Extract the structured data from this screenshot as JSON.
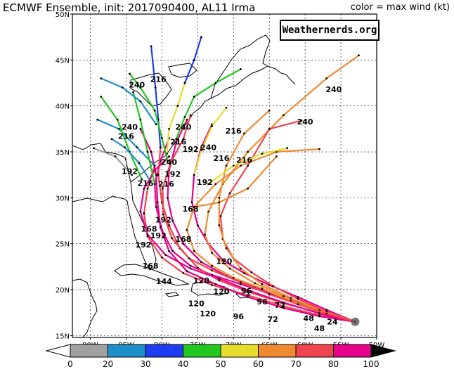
{
  "header": {
    "title": "ECMWF Ensemble, init: 2017090400, AL11 Irma",
    "legend_title": "color = max wind (kt)",
    "badge": "Weathernerds.org"
  },
  "axes": {
    "lat_labels": [
      "50N",
      "45N",
      "40N",
      "35N",
      "30N",
      "25N",
      "20N",
      "15N"
    ],
    "lon_labels": [
      "90W",
      "85W",
      "80W",
      "75W",
      "70W",
      "65W",
      "60W",
      "55W",
      "50W"
    ]
  },
  "colorbar": {
    "ticks": [
      "0",
      "20",
      "30",
      "40",
      "50",
      "60",
      "70",
      "80",
      "100"
    ],
    "colors": [
      "#ffffff",
      "#a0a0a0",
      "#1e90c8",
      "#1e3cf0",
      "#22c81e",
      "#e6dc2a",
      "#f08a30",
      "#ef4450",
      "#e6008c",
      "#000000"
    ]
  },
  "tracks": [
    {
      "color": "#e6008c",
      "pts": [
        [
          53,
          16.5
        ],
        [
          57,
          17.5
        ],
        [
          61,
          18.6
        ],
        [
          65,
          19.6
        ],
        [
          69,
          20.6
        ],
        [
          73,
          21.6
        ],
        [
          76,
          22.6
        ],
        [
          78.5,
          24.2
        ],
        [
          80,
          26.5
        ],
        [
          80.8,
          29
        ],
        [
          81,
          31.5
        ],
        [
          80.2,
          34
        ],
        [
          79,
          36.5
        ]
      ]
    },
    {
      "color": "#e6008c",
      "pts": [
        [
          53,
          16.5
        ],
        [
          58,
          17.8
        ],
        [
          63,
          19
        ],
        [
          67,
          20.3
        ],
        [
          71,
          21.5
        ],
        [
          74.5,
          23
        ],
        [
          77,
          25
        ],
        [
          78.5,
          27.5
        ],
        [
          79.2,
          30
        ],
        [
          79,
          33
        ],
        [
          78,
          36
        ],
        [
          76.5,
          38.5
        ]
      ]
    },
    {
      "color": "#ef4450",
      "pts": [
        [
          53,
          16.5
        ],
        [
          58,
          17.5
        ],
        [
          63,
          18.5
        ],
        [
          68,
          19.8
        ],
        [
          72,
          21
        ],
        [
          75,
          22.4
        ],
        [
          77.5,
          24.5
        ],
        [
          79,
          27
        ],
        [
          80,
          29.5
        ],
        [
          80.5,
          32.5
        ],
        [
          80.2,
          35.5
        ]
      ]
    },
    {
      "color": "#e6008c",
      "pts": [
        [
          53,
          16.5
        ],
        [
          57,
          17.8
        ],
        [
          61,
          19.2
        ],
        [
          65,
          20.5
        ],
        [
          68.5,
          21.8
        ],
        [
          71.5,
          23.2
        ],
        [
          73.5,
          25
        ],
        [
          75,
          27
        ],
        [
          75.8,
          29.5
        ],
        [
          75.5,
          32.5
        ],
        [
          74.5,
          35.5
        ],
        [
          73,
          38
        ]
      ]
    },
    {
      "color": "#ef4450",
      "pts": [
        [
          53,
          16.5
        ],
        [
          58,
          17.2
        ],
        [
          63,
          18.2
        ],
        [
          68,
          19.4
        ],
        [
          73,
          20.5
        ],
        [
          77,
          21.8
        ],
        [
          80,
          23.5
        ],
        [
          82,
          25.8
        ],
        [
          82.5,
          28.3
        ],
        [
          82,
          31
        ],
        [
          81,
          33.5
        ]
      ]
    },
    {
      "color": "#f08a30",
      "pts": [
        [
          53,
          16.5
        ],
        [
          58,
          17.6
        ],
        [
          62,
          18.8
        ],
        [
          66,
          20.1
        ],
        [
          70,
          21.3
        ],
        [
          73,
          22.6
        ],
        [
          75.5,
          24.2
        ],
        [
          76.5,
          26.5
        ],
        [
          75.5,
          29
        ],
        [
          72.5,
          31.5
        ],
        [
          69,
          33.5
        ],
        [
          64,
          35
        ],
        [
          58,
          35.3
        ]
      ]
    },
    {
      "color": "#f08a30",
      "pts": [
        [
          53,
          16.5
        ],
        [
          58,
          17.9
        ],
        [
          63,
          19.3
        ],
        [
          67,
          20.7
        ],
        [
          70.5,
          22.3
        ],
        [
          73,
          24
        ],
        [
          74,
          26
        ],
        [
          73.5,
          28.5
        ],
        [
          71.5,
          31.5
        ],
        [
          68,
          35
        ],
        [
          63,
          39
        ],
        [
          57,
          43
        ],
        [
          52.5,
          45.5
        ]
      ]
    },
    {
      "color": "#e6008c",
      "pts": [
        [
          53,
          16.5
        ],
        [
          58,
          17.4
        ],
        [
          63,
          18.6
        ],
        [
          67.5,
          19.8
        ],
        [
          72,
          21.2
        ],
        [
          76,
          22.3
        ],
        [
          79.5,
          23.8
        ],
        [
          82,
          26
        ],
        [
          83,
          28.5
        ],
        [
          82.5,
          31
        ],
        [
          81,
          33
        ],
        [
          79,
          34.5
        ]
      ]
    },
    {
      "color": "#ef4450",
      "pts": [
        [
          53,
          16.5
        ],
        [
          57,
          17.6
        ],
        [
          61,
          19
        ],
        [
          64.5,
          20.4
        ],
        [
          67.5,
          21.9
        ],
        [
          70,
          23.4
        ],
        [
          71.5,
          25.5
        ],
        [
          71.8,
          28
        ],
        [
          70.5,
          30.5
        ],
        [
          68,
          33.5
        ],
        [
          65,
          37.5
        ],
        [
          60.5,
          38.4
        ]
      ]
    },
    {
      "color": "#e6008c",
      "pts": [
        [
          53,
          16.5
        ],
        [
          58,
          17.1
        ],
        [
          63,
          18
        ],
        [
          68,
          19.2
        ],
        [
          72.5,
          20.6
        ],
        [
          76.5,
          22
        ],
        [
          79,
          24.2
        ],
        [
          80.2,
          26.8
        ],
        [
          80.6,
          29.5
        ],
        [
          80.8,
          32.5
        ],
        [
          81.5,
          35
        ],
        [
          83,
          37.5
        ]
      ]
    },
    {
      "color": "#f08a30",
      "pts": [
        [
          53,
          16.5
        ],
        [
          58,
          17.7
        ],
        [
          62,
          19.1
        ],
        [
          66,
          20.6
        ],
        [
          69,
          22.3
        ],
        [
          71,
          24.5
        ],
        [
          72,
          27
        ],
        [
          72,
          30
        ],
        [
          71,
          33.5
        ],
        [
          68.5,
          37
        ],
        [
          65,
          39.5
        ]
      ]
    },
    {
      "color": "#ef4450",
      "pts": [
        [
          53,
          16.5
        ],
        [
          57,
          17.4
        ],
        [
          61,
          18.4
        ],
        [
          65,
          19.5
        ],
        [
          69,
          20.8
        ],
        [
          73,
          22.1
        ],
        [
          76.2,
          23.4
        ],
        [
          78.6,
          25.6
        ],
        [
          79.8,
          28.2
        ],
        [
          79.9,
          31
        ],
        [
          78.8,
          33.8
        ],
        [
          77,
          36.4
        ],
        [
          76,
          39
        ]
      ]
    },
    {
      "color": "#22c81e",
      "pts": [
        [
          78,
          36.4
        ],
        [
          76.8,
          38.8
        ],
        [
          75.5,
          41
        ],
        [
          72.5,
          42.5
        ],
        [
          69,
          44
        ]
      ]
    },
    {
      "color": "#e6dc2a",
      "pts": [
        [
          79.3,
          34.8
        ],
        [
          79,
          37.5
        ],
        [
          77.8,
          40
        ],
        [
          76.8,
          42.5
        ]
      ]
    },
    {
      "color": "#1e3cf0",
      "pts": [
        [
          80.2,
          35.5
        ],
        [
          80.5,
          38.5
        ],
        [
          80.9,
          42
        ],
        [
          81.5,
          46.5
        ]
      ]
    },
    {
      "color": "#1e90c8",
      "pts": [
        [
          81,
          33.5
        ],
        [
          83.5,
          35.5
        ],
        [
          86,
          37.5
        ],
        [
          89,
          38.5
        ]
      ]
    },
    {
      "color": "#22c81e",
      "pts": [
        [
          82.8,
          32
        ],
        [
          84.5,
          35
        ],
        [
          86.2,
          38.5
        ],
        [
          88.5,
          41
        ]
      ]
    },
    {
      "color": "#a0a0a0",
      "pts": [
        [
          84.2,
          32.5
        ],
        [
          86.5,
          34.5
        ],
        [
          89.5,
          35.4
        ]
      ]
    },
    {
      "color": "#1e90c8",
      "pts": [
        [
          81.6,
          31.8
        ],
        [
          83.2,
          33.8
        ],
        [
          85.2,
          35.5
        ],
        [
          87,
          36.4
        ]
      ]
    },
    {
      "color": "#e6dc2a",
      "pts": [
        [
          75.5,
          32.5
        ],
        [
          74.5,
          35.2
        ],
        [
          73,
          37.8
        ],
        [
          71,
          39.8
        ]
      ]
    },
    {
      "color": "#22c81e",
      "pts": [
        [
          81,
          31.5
        ],
        [
          82,
          35
        ],
        [
          83,
          38.5
        ],
        [
          84,
          41.5
        ]
      ]
    },
    {
      "color": "#1e90c8",
      "pts": [
        [
          80.8,
          38
        ],
        [
          83,
          40.5
        ],
        [
          85.5,
          42
        ],
        [
          88.5,
          43
        ]
      ]
    },
    {
      "color": "#22c81e",
      "pts": [
        [
          79.2,
          34
        ],
        [
          80,
          36.5
        ],
        [
          81,
          39.5
        ],
        [
          83,
          42
        ],
        [
          84.5,
          43.5
        ]
      ]
    },
    {
      "color": "#1e3cf0",
      "pts": [
        [
          76.8,
          42.5
        ],
        [
          75.5,
          45
        ],
        [
          74.5,
          47.5
        ]
      ]
    },
    {
      "color": "#e6dc2a",
      "pts": [
        [
          73.5,
          31.5
        ],
        [
          70,
          33.5
        ],
        [
          66,
          34.8
        ],
        [
          62.5,
          35.4
        ]
      ]
    },
    {
      "color": "#f08a30",
      "pts": [
        [
          75.5,
          29
        ],
        [
          72,
          29.5
        ],
        [
          68,
          31
        ],
        [
          64,
          34.5
        ]
      ]
    }
  ],
  "track_labels": [
    {
      "text": "240",
      "lon": 56,
      "lat": 41.5
    },
    {
      "text": "240",
      "lon": 60,
      "lat": 38
    },
    {
      "text": "216",
      "lon": 70,
      "lat": 37
    },
    {
      "text": "240",
      "lon": 73.5,
      "lat": 35.2
    },
    {
      "text": "216",
      "lon": 71.7,
      "lat": 34
    },
    {
      "text": "216",
      "lon": 68.5,
      "lat": 33.8
    },
    {
      "text": "216",
      "lon": 80.5,
      "lat": 42.6
    },
    {
      "text": "240",
      "lon": 83.5,
      "lat": 42
    },
    {
      "text": "240",
      "lon": 84.5,
      "lat": 37.4
    },
    {
      "text": "216",
      "lon": 85,
      "lat": 36.4
    },
    {
      "text": "240",
      "lon": 77,
      "lat": 37.4
    },
    {
      "text": "216",
      "lon": 77.7,
      "lat": 35.8
    },
    {
      "text": "192",
      "lon": 76,
      "lat": 35
    },
    {
      "text": "240",
      "lon": 79,
      "lat": 33.6
    },
    {
      "text": "192",
      "lon": 84.5,
      "lat": 32.6
    },
    {
      "text": "216",
      "lon": 82.3,
      "lat": 31.3
    },
    {
      "text": "216",
      "lon": 79.4,
      "lat": 31.2
    },
    {
      "text": "192",
      "lon": 78.5,
      "lat": 32.3
    },
    {
      "text": "192",
      "lon": 74,
      "lat": 31.4
    },
    {
      "text": "168",
      "lon": 76,
      "lat": 28.5
    },
    {
      "text": "192",
      "lon": 79.8,
      "lat": 27.3
    },
    {
      "text": "168",
      "lon": 81.8,
      "lat": 26.3
    },
    {
      "text": "192",
      "lon": 80.5,
      "lat": 25.6
    },
    {
      "text": "192",
      "lon": 82.6,
      "lat": 24.6
    },
    {
      "text": "168",
      "lon": 77,
      "lat": 25.2
    },
    {
      "text": "168",
      "lon": 81.6,
      "lat": 22.3
    },
    {
      "text": "144",
      "lon": 79.7,
      "lat": 20.6
    },
    {
      "text": "120",
      "lon": 71.3,
      "lat": 22.8
    },
    {
      "text": "120",
      "lon": 74.5,
      "lat": 20.7
    },
    {
      "text": "120",
      "lon": 71.7,
      "lat": 19.5
    },
    {
      "text": "120",
      "lon": 75.2,
      "lat": 18.2
    },
    {
      "text": "120",
      "lon": 73.6,
      "lat": 17.1
    },
    {
      "text": "96",
      "lon": 68.2,
      "lat": 19.6
    },
    {
      "text": "96",
      "lon": 66,
      "lat": 18.4
    },
    {
      "text": "96",
      "lon": 69.3,
      "lat": 16.8
    },
    {
      "text": "72",
      "lon": 63.5,
      "lat": 18
    },
    {
      "text": "72",
      "lon": 64.5,
      "lat": 16.5
    },
    {
      "text": "48",
      "lon": 59.5,
      "lat": 16.6
    },
    {
      "text": "48",
      "lon": 58,
      "lat": 15.5
    },
    {
      "text": "24",
      "lon": 56.2,
      "lat": 16.2
    }
  ]
}
